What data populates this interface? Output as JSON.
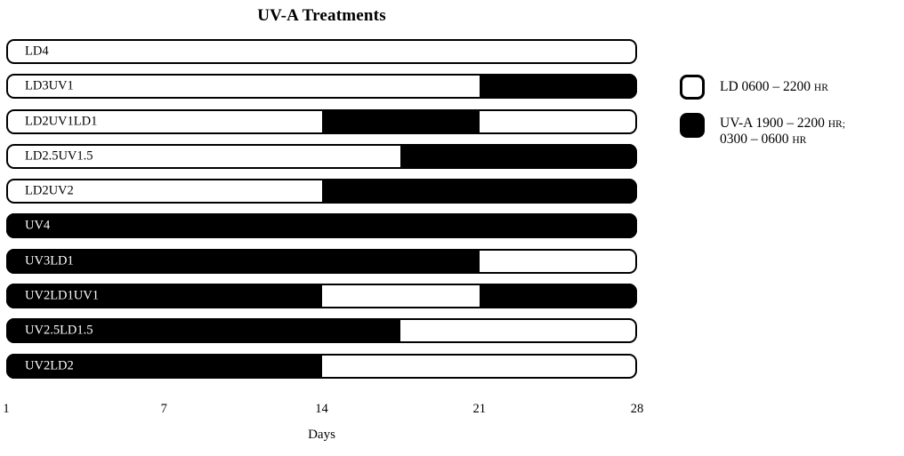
{
  "title": "UV-A Treatments",
  "colors": {
    "background": "#ffffff",
    "ld_fill": "#ffffff",
    "uv_fill": "#000000",
    "outline": "#000000",
    "label_on_ld": "#000000",
    "label_on_uv": "#ffffff"
  },
  "axis": {
    "ticks": [
      "1",
      "7",
      "14",
      "21",
      "28"
    ],
    "label": "Days"
  },
  "chart_data": {
    "type": "gantt",
    "title": "UV-A Treatments",
    "xlabel": "Days",
    "x_ticks": [
      1,
      7,
      14,
      21,
      28
    ],
    "x_range": [
      1,
      28
    ],
    "layout": "horizontal schedule bars, axis evenly divided into 4 weeks, legend at right",
    "rows": [
      {
        "label": "LD4",
        "segments": [
          {
            "condition": "LD",
            "weeks": 4,
            "start_day": 1,
            "end_day": 28
          }
        ]
      },
      {
        "label": "LD3UV1",
        "segments": [
          {
            "condition": "LD",
            "weeks": 3,
            "start_day": 1,
            "end_day": 21
          },
          {
            "condition": "UV-A",
            "weeks": 1,
            "start_day": 21,
            "end_day": 28
          }
        ]
      },
      {
        "label": "LD2UV1LD1",
        "segments": [
          {
            "condition": "LD",
            "weeks": 2,
            "start_day": 1,
            "end_day": 14
          },
          {
            "condition": "UV-A",
            "weeks": 1,
            "start_day": 14,
            "end_day": 21
          },
          {
            "condition": "LD",
            "weeks": 1,
            "start_day": 21,
            "end_day": 28
          }
        ]
      },
      {
        "label": "LD2.5UV1.5",
        "segments": [
          {
            "condition": "LD",
            "weeks": 2.5,
            "start_day": 1,
            "end_day": 17.5
          },
          {
            "condition": "UV-A",
            "weeks": 1.5,
            "start_day": 17.5,
            "end_day": 28
          }
        ]
      },
      {
        "label": "LD2UV2",
        "segments": [
          {
            "condition": "LD",
            "weeks": 2,
            "start_day": 1,
            "end_day": 14
          },
          {
            "condition": "UV-A",
            "weeks": 2,
            "start_day": 14,
            "end_day": 28
          }
        ]
      },
      {
        "label": "UV4",
        "segments": [
          {
            "condition": "UV-A",
            "weeks": 4,
            "start_day": 1,
            "end_day": 28
          }
        ]
      },
      {
        "label": "UV3LD1",
        "segments": [
          {
            "condition": "UV-A",
            "weeks": 3,
            "start_day": 1,
            "end_day": 21
          },
          {
            "condition": "LD",
            "weeks": 1,
            "start_day": 21,
            "end_day": 28
          }
        ]
      },
      {
        "label": "UV2LD1UV1",
        "segments": [
          {
            "condition": "UV-A",
            "weeks": 2,
            "start_day": 1,
            "end_day": 14
          },
          {
            "condition": "LD",
            "weeks": 1,
            "start_day": 14,
            "end_day": 21
          },
          {
            "condition": "UV-A",
            "weeks": 1,
            "start_day": 21,
            "end_day": 28
          }
        ]
      },
      {
        "label": "UV2.5LD1.5",
        "segments": [
          {
            "condition": "UV-A",
            "weeks": 2.5,
            "start_day": 1,
            "end_day": 17.5
          },
          {
            "condition": "LD",
            "weeks": 1.5,
            "start_day": 17.5,
            "end_day": 28
          }
        ]
      },
      {
        "label": "UV2LD2",
        "segments": [
          {
            "condition": "UV-A",
            "weeks": 2,
            "start_day": 1,
            "end_day": 14
          },
          {
            "condition": "LD",
            "weeks": 2,
            "start_day": 14,
            "end_day": 28
          }
        ]
      }
    ],
    "legend": [
      {
        "condition": "LD",
        "fill": "#ffffff",
        "label": "LD 0600 – 2200 HR",
        "lines": [
          [
            "LD 0600 – 2200 ",
            "HR"
          ]
        ]
      },
      {
        "condition": "UV-A",
        "fill": "#000000",
        "label": "UV-A 1900 – 2200 HR; 0300 – 0600 HR",
        "lines": [
          [
            "UV-A 1900 – 2200 ",
            "HR;"
          ],
          [
            "0300 – 0600 ",
            "HR"
          ]
        ]
      }
    ]
  }
}
